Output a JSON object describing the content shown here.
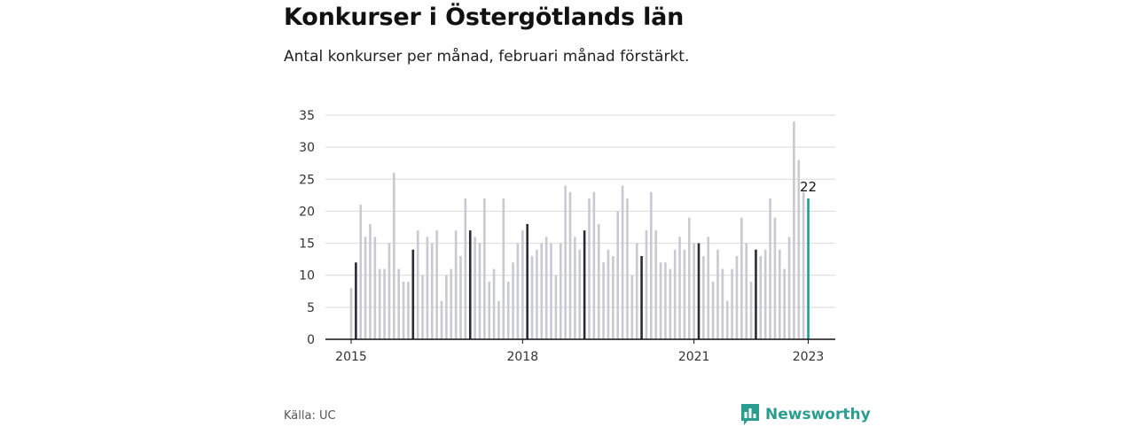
{
  "title": "Konkurser i Östergötlands län",
  "subtitle": "Antal konkurser per månad, februari månad förstärkt.",
  "source": "Källa: UC",
  "brand": "Newsworthy",
  "colors": {
    "bar": "#c9c9d1",
    "highlight": "#2b2b38",
    "latest": "#1f9e91",
    "grid": "#d9d9d9",
    "axis": "#111111",
    "brand": "#2a9d8f"
  },
  "chart_data": {
    "type": "bar",
    "title": "Konkurser i Östergötlands län",
    "ylim": [
      0,
      35
    ],
    "yticks": [
      0,
      5,
      10,
      15,
      20,
      25,
      30,
      35
    ],
    "xticks": [
      "2015",
      "2018",
      "2021",
      "2023"
    ],
    "start": "2015-01",
    "highlight_month": "februari",
    "values": [
      8,
      12,
      21,
      16,
      18,
      16,
      11,
      11,
      15,
      26,
      11,
      9,
      9,
      14,
      17,
      10,
      16,
      15,
      17,
      6,
      10,
      11,
      17,
      13,
      22,
      17,
      16,
      15,
      22,
      9,
      11,
      6,
      22,
      9,
      12,
      15,
      17,
      18,
      13,
      14,
      15,
      16,
      15,
      10,
      15,
      24,
      23,
      16,
      14,
      17,
      22,
      23,
      18,
      12,
      14,
      13,
      20,
      24,
      22,
      10,
      15,
      13,
      17,
      23,
      17,
      12,
      12,
      11,
      14,
      16,
      14,
      19,
      15,
      15,
      13,
      16,
      9,
      14,
      11,
      6,
      11,
      13,
      19,
      15,
      9,
      14,
      13,
      14,
      22,
      19,
      14,
      11,
      16,
      34,
      28,
      23,
      22
    ],
    "last_value_label": "22"
  }
}
